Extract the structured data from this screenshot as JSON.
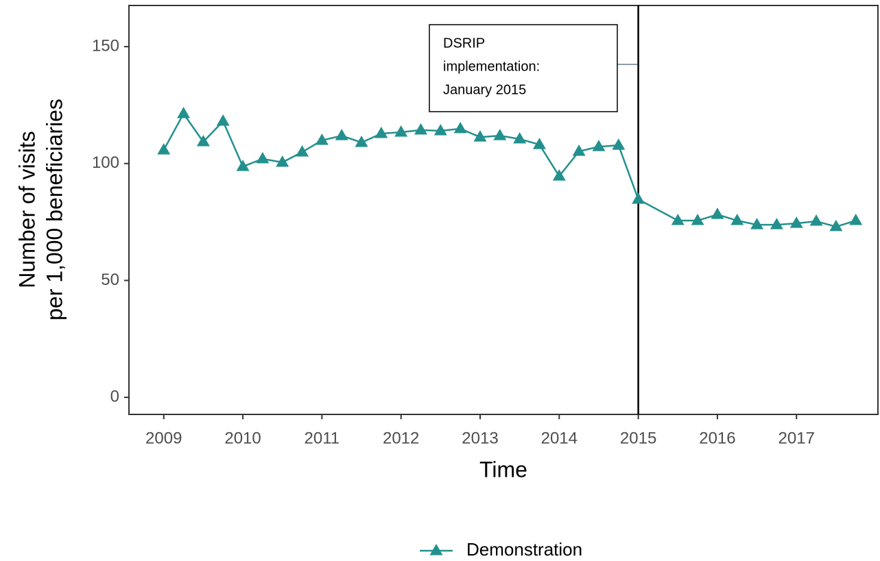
{
  "chart_data": {
    "type": "line",
    "x_title": "Time",
    "y_title": [
      "Number of visits",
      "per 1,000 beneficiaries"
    ],
    "x": [
      2009,
      2009.25,
      2009.5,
      2009.75,
      2010,
      2010.25,
      2010.5,
      2010.75,
      2011,
      2011.25,
      2011.5,
      2011.75,
      2012,
      2012.25,
      2012.5,
      2012.75,
      2013,
      2013.25,
      2013.5,
      2013.75,
      2014,
      2014.25,
      2014.5,
      2014.75,
      2015,
      2015.5,
      2015.75,
      2016,
      2016.25,
      2016.5,
      2016.75,
      2017,
      2017.25,
      2017.5,
      2017.75
    ],
    "series": [
      {
        "name": "Demonstration",
        "color": "#23908e",
        "values": [
          105.8,
          121.3,
          109.3,
          118.1,
          98.7,
          102,
          100.5,
          104.9,
          109.9,
          111.9,
          109,
          112.8,
          113.4,
          114.3,
          114,
          114.9,
          111.3,
          111.9,
          110.5,
          108.1,
          94.6,
          105.2,
          107.2,
          107.8,
          84.7,
          75.6,
          75.6,
          78.2,
          75.6,
          73.8,
          73.8,
          74.4,
          75.3,
          73,
          75.6
        ]
      }
    ],
    "xlim": [
      2008.56,
      2018.03
    ],
    "ylim": [
      -7.3,
      167.6
    ],
    "xticks": [
      2009,
      2010,
      2011,
      2012,
      2013,
      2014,
      2015,
      2016,
      2017
    ],
    "yticks": [
      0,
      50,
      100,
      150
    ],
    "vline": 2015,
    "annotation": [
      "DSRIP",
      "implementation:",
      "January 2015"
    ],
    "legend": "bottom"
  }
}
